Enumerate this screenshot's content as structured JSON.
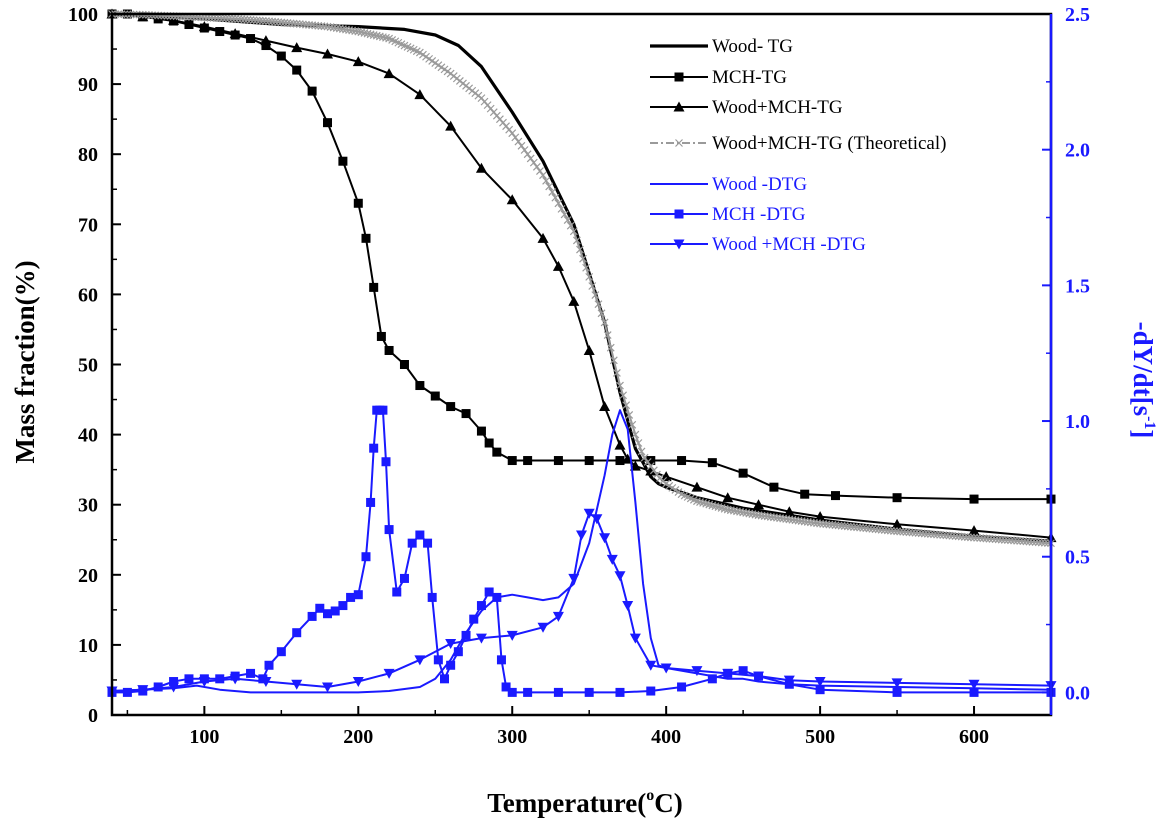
{
  "chart_data": {
    "type": "line",
    "xlabel": "Temperature",
    "xlabel_unit_open": "(",
    "xlabel_degree": "o",
    "xlabel_unit": "C)",
    "ylabel_left": "Mass fraction(%)",
    "ylabel_right_main": "-dY/dt[s",
    "ylabel_right_exp": "-1",
    "ylabel_right_close": "]",
    "xlim": [
      40,
      650
    ],
    "ylim_left": [
      0,
      100
    ],
    "ylim_right": [
      -0.0833,
      2.5
    ],
    "x_ticks": [
      100,
      200,
      300,
      400,
      500,
      600
    ],
    "y_left_ticks": [
      0,
      10,
      20,
      30,
      40,
      50,
      60,
      70,
      80,
      90,
      100
    ],
    "y_right_ticks": [
      "0.0",
      "0.5",
      "1.0",
      "1.5",
      "2.0",
      "2.5"
    ],
    "colors": {
      "tg": "#000000",
      "theoretical": "#9a9a9a",
      "dtg": "#1a1aff",
      "right_axis": "#1a1aff"
    },
    "series": [
      {
        "name": "Wood- TG",
        "axis": "left",
        "color": "#000000",
        "marker": "none",
        "width": 3.2,
        "x": [
          40,
          100,
          150,
          200,
          230,
          250,
          265,
          280,
          300,
          320,
          340,
          360,
          370,
          380,
          390,
          395,
          400,
          420,
          450,
          500,
          550,
          600,
          650
        ],
        "y": [
          100,
          99.3,
          98.5,
          98.2,
          97.8,
          97,
          95.5,
          92.5,
          86,
          79,
          70,
          56,
          46,
          38,
          34,
          33,
          32.5,
          31,
          29.5,
          27.8,
          26.5,
          25.5,
          24.8
        ]
      },
      {
        "name": "MCH-TG",
        "axis": "left",
        "color": "#000000",
        "marker": "square",
        "width": 2,
        "x": [
          40,
          50,
          60,
          70,
          80,
          90,
          100,
          110,
          120,
          130,
          140,
          150,
          160,
          170,
          180,
          190,
          200,
          205,
          210,
          215,
          220,
          230,
          240,
          250,
          260,
          270,
          280,
          285,
          290,
          300,
          310,
          330,
          350,
          370,
          390,
          410,
          430,
          450,
          470,
          490,
          510,
          550,
          600,
          650
        ],
        "y": [
          100,
          100,
          99.6,
          99.3,
          99,
          98.5,
          98,
          97.5,
          97,
          96.5,
          95.5,
          94,
          92,
          89,
          84.5,
          79,
          73,
          68,
          61,
          54,
          52,
          50,
          47,
          45.5,
          44,
          43,
          40.5,
          38.8,
          37.5,
          36.3,
          36.3,
          36.3,
          36.3,
          36.3,
          36.3,
          36.3,
          36,
          34.5,
          32.5,
          31.5,
          31.3,
          31,
          30.8,
          30.8
        ]
      },
      {
        "name": "Wood+MCH-TG",
        "axis": "left",
        "color": "#000000",
        "marker": "triangle",
        "width": 2,
        "x": [
          40,
          60,
          80,
          100,
          120,
          140,
          160,
          180,
          200,
          220,
          240,
          260,
          280,
          300,
          320,
          330,
          340,
          350,
          360,
          370,
          375,
          380,
          390,
          400,
          420,
          440,
          460,
          480,
          500,
          550,
          600,
          650
        ],
        "y": [
          100,
          99.6,
          99.1,
          98.2,
          97.2,
          96.2,
          95.2,
          94.3,
          93.2,
          91.5,
          88.5,
          84,
          78,
          73.5,
          68,
          64,
          59,
          52,
          44,
          38.5,
          36.5,
          35.5,
          34.8,
          34,
          32.5,
          31,
          30,
          29,
          28.3,
          27.2,
          26.3,
          25.3
        ]
      },
      {
        "name": "Wood+MCH-TG (Theoretical)",
        "axis": "left",
        "color": "#9a9a9a",
        "marker": "cross",
        "width": 2,
        "x": [
          40,
          60,
          80,
          100,
          120,
          140,
          160,
          180,
          200,
          220,
          240,
          260,
          280,
          300,
          320,
          340,
          360,
          370,
          380,
          385,
          390,
          395,
          400,
          410,
          420,
          440,
          460,
          480,
          500,
          550,
          600,
          650
        ],
        "y": [
          100,
          99.9,
          99.7,
          99.5,
          99.3,
          99,
          98.6,
          98.2,
          97.5,
          96.5,
          94.5,
          91.5,
          88,
          83,
          77,
          69,
          56,
          47,
          40,
          37,
          35.5,
          34,
          33,
          31.5,
          30.5,
          29.3,
          28.5,
          27.9,
          27.3,
          26.2,
          25.3,
          24.5
        ]
      },
      {
        "name": "Wood -DTG",
        "axis": "right",
        "color": "#1a1aff",
        "marker": "none",
        "width": 2,
        "x": [
          40,
          80,
          95,
          110,
          130,
          160,
          200,
          220,
          240,
          250,
          260,
          270,
          280,
          290,
          300,
          310,
          320,
          330,
          340,
          350,
          360,
          365,
          370,
          375,
          380,
          385,
          390,
          395,
          400,
          420,
          440,
          450,
          460,
          480,
          500,
          550,
          600,
          650
        ],
        "y": [
          0.005,
          0.015,
          0.025,
          0.01,
          0.0,
          0.0,
          0.0,
          0.005,
          0.02,
          0.05,
          0.12,
          0.22,
          0.3,
          0.35,
          0.36,
          0.35,
          0.34,
          0.35,
          0.4,
          0.55,
          0.8,
          0.95,
          1.04,
          0.97,
          0.7,
          0.4,
          0.2,
          0.1,
          0.09,
          0.07,
          0.05,
          0.05,
          0.04,
          0.03,
          0.025,
          0.02,
          0.015,
          0.01
        ]
      },
      {
        "name": "MCH -DTG",
        "axis": "right",
        "color": "#1a1aff",
        "marker": "square",
        "width": 2,
        "x": [
          40,
          50,
          60,
          70,
          80,
          90,
          100,
          110,
          120,
          130,
          138,
          142,
          150,
          160,
          170,
          175,
          180,
          185,
          190,
          195,
          200,
          205,
          208,
          210,
          212,
          214,
          216,
          218,
          220,
          225,
          230,
          235,
          240,
          245,
          248,
          252,
          256,
          260,
          265,
          270,
          275,
          280,
          285,
          290,
          293,
          296,
          300,
          310,
          330,
          350,
          370,
          390,
          410,
          430,
          440,
          450,
          460,
          480,
          500,
          550,
          600,
          650
        ],
        "y": [
          0.0,
          0.0,
          0.005,
          0.02,
          0.04,
          0.05,
          0.05,
          0.05,
          0.06,
          0.07,
          0.05,
          0.1,
          0.15,
          0.22,
          0.28,
          0.31,
          0.29,
          0.3,
          0.32,
          0.35,
          0.36,
          0.5,
          0.7,
          0.9,
          1.04,
          1.04,
          1.04,
          0.85,
          0.6,
          0.37,
          0.42,
          0.55,
          0.58,
          0.55,
          0.35,
          0.12,
          0.05,
          0.1,
          0.15,
          0.21,
          0.27,
          0.32,
          0.37,
          0.35,
          0.12,
          0.02,
          0.0,
          0.0,
          0.0,
          0.0,
          0.0,
          0.005,
          0.02,
          0.05,
          0.07,
          0.08,
          0.06,
          0.03,
          0.01,
          0.0,
          0.0,
          0.0
        ]
      },
      {
        "name": "Wood +MCH -DTG",
        "axis": "right",
        "color": "#1a1aff",
        "marker": "triangle-down",
        "width": 2,
        "x": [
          40,
          60,
          80,
          100,
          120,
          140,
          160,
          180,
          200,
          220,
          240,
          260,
          280,
          300,
          320,
          330,
          340,
          345,
          350,
          355,
          360,
          365,
          370,
          375,
          380,
          390,
          400,
          420,
          440,
          460,
          480,
          500,
          550,
          600,
          650
        ],
        "y": [
          0.005,
          0.01,
          0.02,
          0.04,
          0.05,
          0.04,
          0.03,
          0.02,
          0.04,
          0.07,
          0.12,
          0.18,
          0.2,
          0.21,
          0.24,
          0.28,
          0.42,
          0.58,
          0.66,
          0.64,
          0.57,
          0.49,
          0.43,
          0.32,
          0.2,
          0.1,
          0.09,
          0.08,
          0.07,
          0.06,
          0.045,
          0.04,
          0.035,
          0.03,
          0.025
        ]
      }
    ],
    "legend": [
      {
        "label": "Wood- TG",
        "color": "#000000",
        "marker": "none",
        "width": 3.2
      },
      {
        "label": "MCH-TG",
        "color": "#000000",
        "marker": "square",
        "width": 2
      },
      {
        "label": "Wood+MCH-TG",
        "color": "#000000",
        "marker": "triangle",
        "width": 2
      },
      {
        "label": "Wood+MCH-TG (Theoretical)",
        "color": "#9a9a9a",
        "marker": "cross",
        "width": 2
      },
      {
        "label": "Wood -DTG",
        "color": "#1a1aff",
        "marker": "none",
        "width": 2
      },
      {
        "label": "MCH -DTG",
        "color": "#1a1aff",
        "marker": "square",
        "width": 2
      },
      {
        "label": "Wood +MCH -DTG",
        "color": "#1a1aff",
        "marker": "triangle-down",
        "width": 2
      }
    ],
    "legend_position": "top-right"
  }
}
